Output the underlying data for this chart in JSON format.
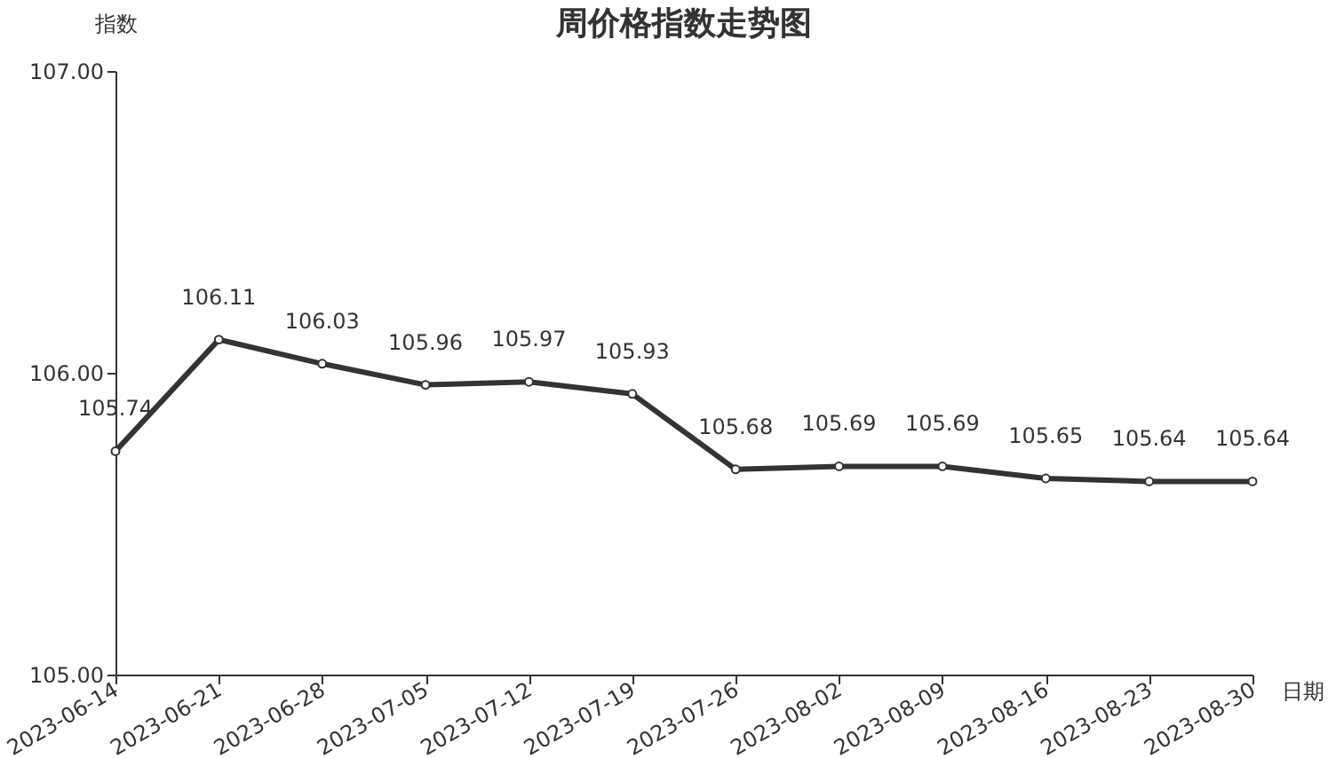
{
  "chart_data": {
    "type": "line",
    "title": "周价格指数走势图",
    "xlabel": "日期",
    "ylabel": "指数",
    "categories": [
      "2023-06-14",
      "2023-06-21",
      "2023-06-28",
      "2023-07-05",
      "2023-07-12",
      "2023-07-19",
      "2023-07-26",
      "2023-08-02",
      "2023-08-09",
      "2023-08-16",
      "2023-08-23",
      "2023-08-30"
    ],
    "series": [
      {
        "color": "#333333",
        "values": [
          105.74,
          106.11,
          106.03,
          105.96,
          105.97,
          105.93,
          105.68,
          105.69,
          105.69,
          105.65,
          105.64,
          105.64
        ]
      }
    ],
    "ylim": [
      105,
      107
    ],
    "yticks": [
      {
        "value": 105,
        "label": "105.00"
      },
      {
        "value": 106,
        "label": "106.00"
      },
      {
        "value": 107,
        "label": "107.00"
      }
    ],
    "data_labels": true,
    "marker": "circle",
    "line_style": "solid",
    "grid": false
  }
}
